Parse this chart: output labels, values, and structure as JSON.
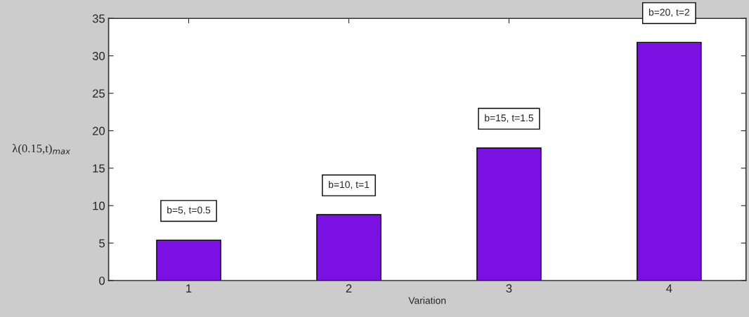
{
  "chart_data": {
    "type": "bar",
    "categories": [
      "1",
      "2",
      "3",
      "4"
    ],
    "values": [
      5.4,
      8.8,
      17.7,
      31.8
    ],
    "color": "#7a10e2",
    "xlabel": "Variation",
    "ylabel": "λ(0.15,t)$_{max}$",
    "ylim": [
      0,
      35
    ],
    "yticks": [
      0,
      5,
      10,
      15,
      20,
      25,
      30,
      35
    ],
    "grid": false,
    "annotations": [
      {
        "text": "b=5, t=0.5",
        "x": "1",
        "y": 5.4
      },
      {
        "text": "b=10, t=1",
        "x": "2",
        "y": 8.8
      },
      {
        "text": "b=15, t=1.5",
        "x": "3",
        "y": 17.7
      },
      {
        "text": "b=20, t=2",
        "x": "4",
        "y": 31.8
      }
    ]
  }
}
